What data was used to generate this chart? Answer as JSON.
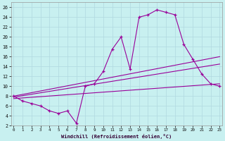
{
  "xlabel": "Windchill (Refroidissement éolien,°C)",
  "bg_color": "#c8f0f0",
  "grid_color": "#b0d8e0",
  "line_color": "#990099",
  "hours": [
    0,
    1,
    2,
    3,
    4,
    5,
    6,
    7,
    8,
    9,
    10,
    11,
    12,
    13,
    14,
    15,
    16,
    17,
    18,
    19,
    20,
    21,
    22,
    23
  ],
  "temp_main": [
    8,
    7,
    6.5,
    6,
    5,
    4.5,
    5,
    2.5,
    10,
    10.5,
    13,
    17.5,
    20,
    13.5,
    24,
    24.5,
    25.5,
    25,
    24.5,
    18.5,
    15.5,
    12.5,
    10.5,
    10
  ],
  "line1": [
    [
      0,
      8
    ],
    [
      23,
      16
    ]
  ],
  "line2": [
    [
      0,
      7.8
    ],
    [
      23,
      14.5
    ]
  ],
  "line3": [
    [
      0,
      7.5
    ],
    [
      23,
      10.5
    ]
  ],
  "ylim": [
    2,
    27
  ],
  "xlim": [
    -0.3,
    23.3
  ],
  "yticks": [
    2,
    4,
    6,
    8,
    10,
    12,
    14,
    16,
    18,
    20,
    22,
    24,
    26
  ],
  "xticks": [
    0,
    1,
    2,
    3,
    4,
    5,
    6,
    7,
    8,
    9,
    10,
    11,
    12,
    13,
    14,
    15,
    16,
    17,
    18,
    19,
    20,
    21,
    22,
    23
  ]
}
